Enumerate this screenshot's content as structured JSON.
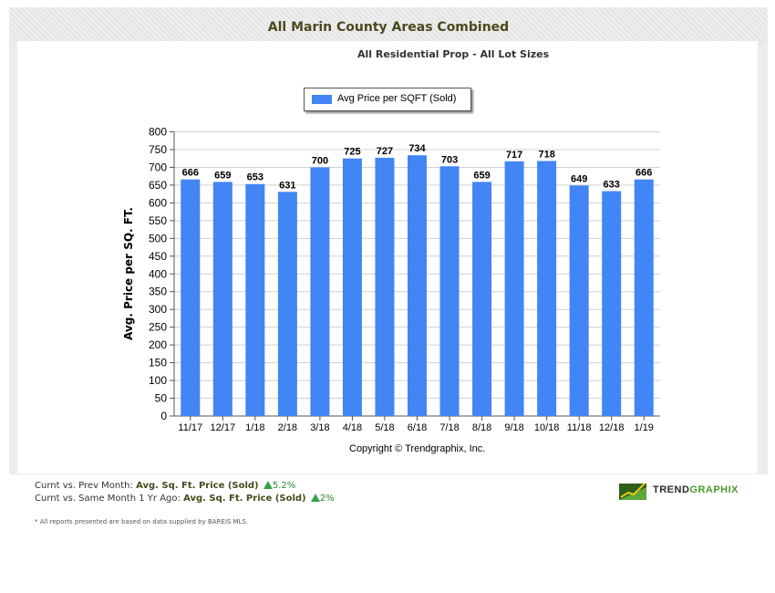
{
  "header": {
    "title": "All Marin County Areas Combined",
    "subtitle": "All Residential Prop - All Lot Sizes"
  },
  "chart_data": {
    "type": "bar",
    "categories": [
      "11/17",
      "12/17",
      "1/18",
      "2/18",
      "3/18",
      "4/18",
      "5/18",
      "6/18",
      "7/18",
      "8/18",
      "9/18",
      "10/18",
      "11/18",
      "12/18",
      "1/19"
    ],
    "series": [
      {
        "name": "Avg Price per SQFT (Sold)",
        "values": [
          666,
          659,
          653,
          631,
          700,
          725,
          727,
          734,
          703,
          659,
          717,
          718,
          649,
          633,
          666
        ]
      }
    ],
    "data_labels": [
      "666",
      "659",
      "653",
      "631",
      "700",
      "725",
      "727",
      "734",
      "703",
      "659",
      "717",
      "718",
      "649",
      "633",
      "666"
    ],
    "ylabel": "Avg. Price per SQ. FT.",
    "xlabel": "",
    "ylim": [
      0,
      800
    ],
    "yticks": [
      0,
      50,
      100,
      150,
      200,
      250,
      300,
      350,
      400,
      450,
      500,
      550,
      600,
      650,
      700,
      750,
      800
    ],
    "grid": true,
    "legend_position": "top-center",
    "bar_color": "#4285f4"
  },
  "copyright": "Copyright © Trendgraphix, Inc.",
  "stats": {
    "line1_prefix": "Curnt vs. Prev Month:",
    "line1_metric": "Avg. Sq. Ft. Price (Sold)",
    "line1_value": "5.2%",
    "line2_prefix": "Curnt vs. Same Month 1 Yr Ago:",
    "line2_metric": "Avg. Sq. Ft. Price (Sold)",
    "line2_value": "2%"
  },
  "footnote": "* All reports presented are based on data supplied by BAREIS MLS.",
  "logo": {
    "part1": "TREND",
    "part2": "GRAPHIX"
  },
  "icons": {
    "trend_up": "triangle-up-icon",
    "logo_mark": "trendgraphix-logo-icon"
  }
}
